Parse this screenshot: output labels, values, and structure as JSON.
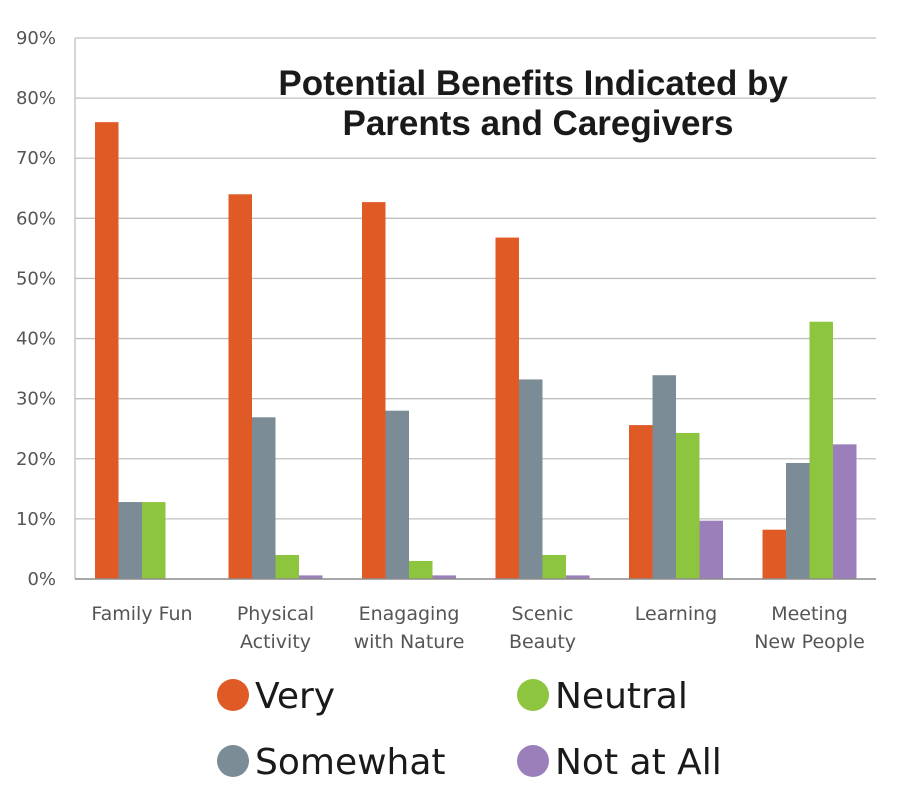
{
  "chart_data": {
    "type": "bar",
    "title": "Potential Benefits Indicated by Parents and Caregivers",
    "title_lines": [
      "Potential Benefits Indicated by",
      "Parents and Caregivers"
    ],
    "categories": [
      [
        "Family Fun"
      ],
      [
        "Physical",
        "Activity"
      ],
      [
        "Enagaging",
        "with Nature"
      ],
      [
        "Scenic",
        "Beauty"
      ],
      [
        "Learning"
      ],
      [
        "Meeting",
        "New People"
      ]
    ],
    "series": [
      {
        "name": "Very",
        "color": "#e05a26",
        "values": [
          76,
          64,
          62.7,
          56.8,
          25.6,
          8.2
        ]
      },
      {
        "name": "Somewhat",
        "color": "#7b8c96",
        "values": [
          12.8,
          26.9,
          28,
          33.2,
          33.9,
          19.3
        ]
      },
      {
        "name": "Neutral",
        "color": "#8dc53f",
        "values": [
          12.8,
          4,
          3,
          4,
          24.3,
          42.8
        ]
      },
      {
        "name": "Not at All",
        "color": "#9b7fbb",
        "values": [
          0,
          0.6,
          0.6,
          0.6,
          9.7,
          22.4
        ]
      }
    ],
    "yticks": [
      "0%",
      "10%",
      "20%",
      "30%",
      "40%",
      "50%",
      "60%",
      "70%",
      "80%",
      "90%"
    ],
    "ylim": [
      0,
      90
    ],
    "xlabel": "",
    "ylabel": "",
    "grid": true,
    "legend_position": "bottom"
  }
}
